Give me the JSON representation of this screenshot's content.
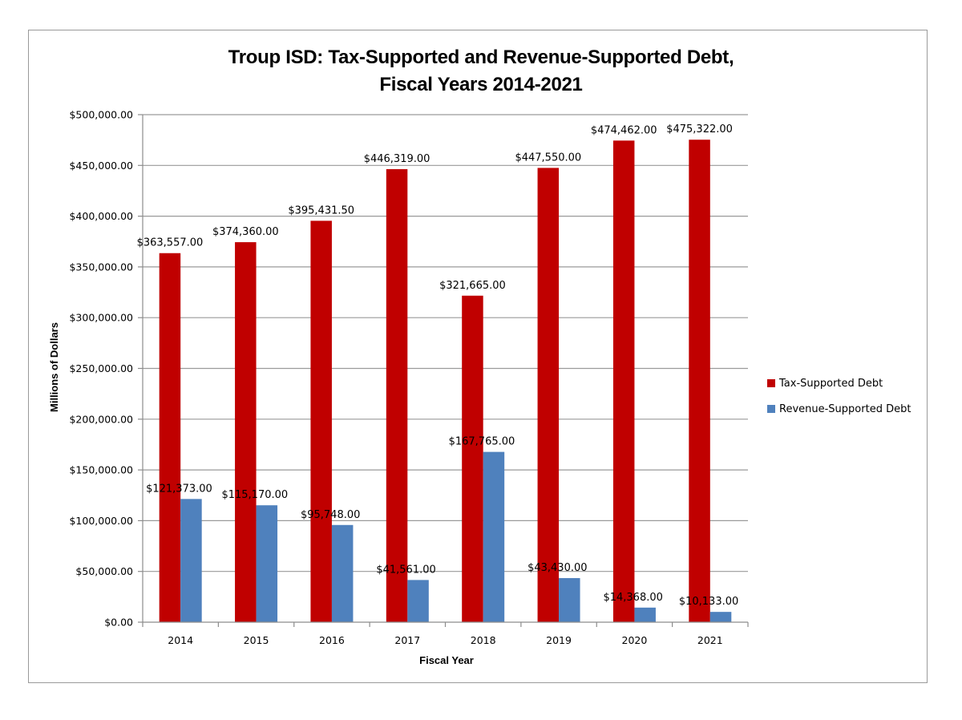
{
  "chart_data": {
    "type": "bar",
    "title": "Troup ISD: Tax-Supported and Revenue-Supported Debt,",
    "subtitle": "Fiscal Years 2014-2021",
    "xlabel": "Fiscal Year",
    "ylabel": "Millions of Dollars",
    "ylim": [
      0,
      500000
    ],
    "y_ticks": [
      0,
      50000,
      100000,
      150000,
      200000,
      250000,
      300000,
      350000,
      400000,
      450000,
      500000
    ],
    "y_tick_labels": [
      "$0.00",
      "$50,000.00",
      "$100,000.00",
      "$150,000.00",
      "$200,000.00",
      "$250,000.00",
      "$300,000.00",
      "$350,000.00",
      "$400,000.00",
      "$450,000.00",
      "$500,000.00"
    ],
    "grid": true,
    "legend_position": "right",
    "categories": [
      "2014",
      "2015",
      "2016",
      "2017",
      "2018",
      "2019",
      "2020",
      "2021"
    ],
    "series": [
      {
        "name": "Tax-Supported Debt",
        "color": "#C00000",
        "values": [
          363557.0,
          374360.0,
          395431.5,
          446319.0,
          321665.0,
          447550.0,
          474462.0,
          475322.0
        ],
        "labels": [
          "$363,557.00",
          "$374,360.00",
          "$395,431.50",
          "$446,319.00",
          "$321,665.00",
          "$447,550.00",
          "$474,462.00",
          "$475,322.00"
        ]
      },
      {
        "name": "Revenue-Supported Debt",
        "color": "#4F81BD",
        "values": [
          121373.0,
          115170.0,
          95748.0,
          41561.0,
          167765.0,
          43430.0,
          14368.0,
          10133.0
        ],
        "labels": [
          "$121,373.00",
          "$115,170.00",
          "$95,748.00",
          "$41,561.00",
          "$167,765.00",
          "$43,430.00",
          "$14,368.00",
          "$10,133.00"
        ]
      }
    ]
  }
}
